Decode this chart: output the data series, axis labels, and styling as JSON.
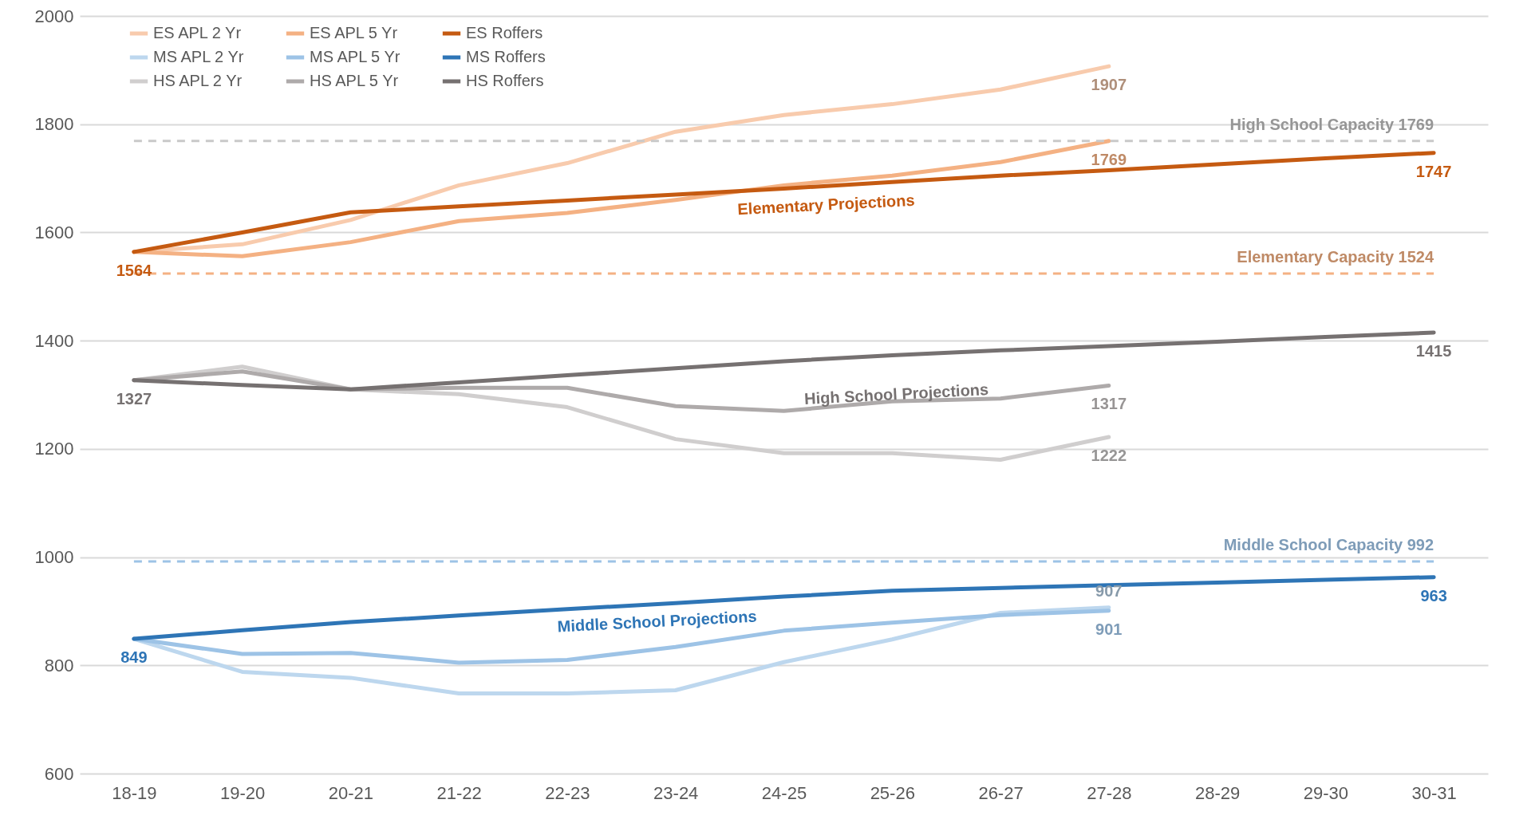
{
  "chart_data": {
    "type": "line",
    "categories": [
      "18-19",
      "19-20",
      "20-21",
      "21-22",
      "22-23",
      "23-24",
      "24-25",
      "25-26",
      "26-27",
      "27-28",
      "28-29",
      "29-30",
      "30-31"
    ],
    "ylim": [
      600,
      2000
    ],
    "yticks": [
      600,
      800,
      1000,
      1200,
      1400,
      1600,
      1800,
      2000
    ],
    "grid": "y",
    "legend": "top left",
    "line_style": "solid",
    "marker": "none",
    "series": [
      {
        "name": "ES APL 2 Yr",
        "color": "#f8cbad",
        "values": [
          1564,
          1578,
          1623,
          1687,
          1728,
          1786,
          1817,
          1837,
          1864,
          1907,
          null,
          null,
          null
        ],
        "value_labels": [
          null,
          null,
          null,
          null,
          null,
          null,
          null,
          null,
          null,
          "1907",
          null,
          null,
          null
        ]
      },
      {
        "name": "ES APL 5 Yr",
        "color": "#f4b183",
        "values": [
          1564,
          1556,
          1582,
          1621,
          1636,
          1660,
          1687,
          1705,
          1730,
          1769,
          null,
          null,
          null
        ],
        "value_labels": [
          null,
          null,
          null,
          null,
          null,
          null,
          null,
          null,
          null,
          "1769",
          null,
          null,
          null
        ]
      },
      {
        "name": "ES Roffers",
        "color": "#c55a11",
        "values": [
          1564,
          1600,
          1637,
          1648,
          1659,
          1670,
          1681,
          1693,
          1705,
          1715,
          1726,
          1737,
          1747
        ],
        "value_labels": [
          "1564",
          null,
          null,
          null,
          null,
          null,
          null,
          null,
          null,
          null,
          null,
          null,
          "1747"
        ]
      },
      {
        "name": "MS APL 2 Yr",
        "color": "#bdd7ee",
        "values": [
          849,
          788,
          777,
          748,
          748,
          754,
          806,
          848,
          897,
          907,
          null,
          null,
          null
        ],
        "value_labels": [
          null,
          null,
          null,
          null,
          null,
          null,
          null,
          null,
          null,
          "907",
          null,
          null,
          null
        ]
      },
      {
        "name": "MS APL 5 Yr",
        "color": "#9dc3e6",
        "values": [
          849,
          821,
          823,
          805,
          810,
          834,
          864,
          879,
          893,
          901,
          null,
          null,
          null
        ],
        "value_labels": [
          null,
          null,
          null,
          null,
          null,
          null,
          null,
          null,
          null,
          "901",
          null,
          null,
          null
        ]
      },
      {
        "name": "MS Roffers",
        "color": "#2e75b6",
        "values": [
          849,
          865,
          880,
          892,
          904,
          915,
          927,
          938,
          943,
          948,
          953,
          958,
          963
        ],
        "value_labels": [
          "849",
          null,
          null,
          null,
          null,
          null,
          null,
          null,
          null,
          null,
          null,
          null,
          "963"
        ]
      },
      {
        "name": "HS APL 2 Yr",
        "color": "#d0cece",
        "values": [
          1327,
          1352,
          1310,
          1301,
          1277,
          1218,
          1192,
          1192,
          1180,
          1222,
          null,
          null,
          null
        ],
        "value_labels": [
          null,
          null,
          null,
          null,
          null,
          null,
          null,
          null,
          null,
          "1222",
          null,
          null,
          null
        ]
      },
      {
        "name": "HS APL 5 Yr",
        "color": "#aeaaaa",
        "values": [
          1327,
          1343,
          1310,
          1313,
          1313,
          1279,
          1270,
          1288,
          1293,
          1317,
          null,
          null,
          null
        ],
        "value_labels": [
          null,
          null,
          null,
          null,
          null,
          null,
          null,
          null,
          null,
          "1317",
          null,
          null,
          null
        ]
      },
      {
        "name": "HS Roffers",
        "color": "#767171",
        "values": [
          1327,
          1318,
          1310,
          1323,
          1336,
          1349,
          1362,
          1373,
          1382,
          1390,
          1398,
          1407,
          1415
        ],
        "value_labels": [
          "1327",
          null,
          null,
          null,
          null,
          null,
          null,
          null,
          null,
          null,
          null,
          null,
          "1415"
        ]
      }
    ],
    "ref_lines": [
      {
        "axis": "y",
        "value": 1769,
        "label": "High School Capacity 1769",
        "color": "#c9c9c9",
        "line_style": "dashed"
      },
      {
        "axis": "y",
        "value": 1524,
        "label": "Elementary Capacity 1524",
        "color": "#f4b183",
        "line_style": "dashed"
      },
      {
        "axis": "y",
        "value": 992,
        "label": "Middle School Capacity 992",
        "color": "#9dc3e6",
        "line_style": "dashed"
      }
    ],
    "annotations": [
      "Elementary Projections",
      "High School Projections",
      "Middle School Projections"
    ]
  }
}
